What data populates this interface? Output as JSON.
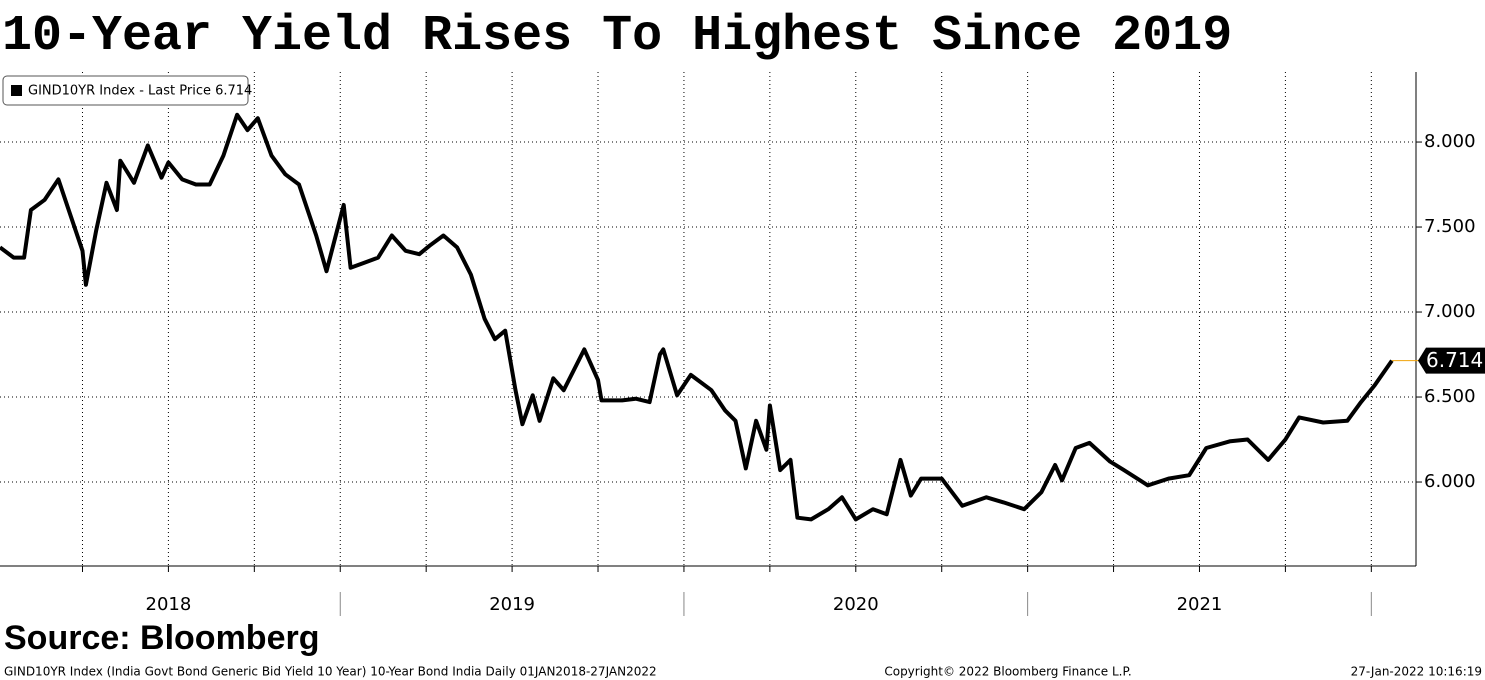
{
  "chart_data": {
    "type": "line",
    "title": "10-Year Yield Rises To Highest Since 2019",
    "source": "Source: Bloomberg",
    "footer": {
      "left": "GIND10YR Index (India Govt Bond Generic Bid Yield 10 Year) 10-Year Bond India  Daily 01JAN2018-27JAN2022",
      "center": "Copyright© 2022 Bloomberg Finance L.P.",
      "right": "27-Jan-2022 10:16:19"
    },
    "x": [
      2018.01,
      2018.05,
      2018.08,
      2018.1,
      2018.14,
      2018.18,
      2018.21,
      2018.25,
      2018.26,
      2018.29,
      2018.32,
      2018.35,
      2018.36,
      2018.4,
      2018.44,
      2018.48,
      2018.5,
      2018.54,
      2018.58,
      2018.62,
      2018.66,
      2018.7,
      2018.73,
      2018.76,
      2018.8,
      2018.84,
      2018.88,
      2018.93,
      2018.96,
      2019.01,
      2019.03,
      2019.07,
      2019.11,
      2019.15,
      2019.19,
      2019.23,
      2019.26,
      2019.3,
      2019.34,
      2019.38,
      2019.42,
      2019.45,
      2019.48,
      2019.51,
      2019.53,
      2019.56,
      2019.58,
      2019.62,
      2019.65,
      2019.71,
      2019.75,
      2019.76,
      2019.82,
      2019.86,
      2019.9,
      2019.93,
      2019.94,
      2019.98,
      2020.02,
      2020.08,
      2020.12,
      2020.15,
      2020.18,
      2020.21,
      2020.24,
      2020.25,
      2020.28,
      2020.31,
      2020.33,
      2020.37,
      2020.42,
      2020.46,
      2020.5,
      2020.55,
      2020.59,
      2020.63,
      2020.66,
      2020.69,
      2020.75,
      2020.81,
      2020.88,
      2020.93,
      2020.99,
      2021.04,
      2021.08,
      2021.1,
      2021.14,
      2021.18,
      2021.24,
      2021.28,
      2021.35,
      2021.41,
      2021.47,
      2021.52,
      2021.59,
      2021.64,
      2021.7,
      2021.75,
      2021.79,
      2021.86,
      2021.93,
      2021.97,
      2022.01,
      2022.06
    ],
    "series": [
      {
        "name": "GIND10YR Index - Last Price 6.714",
        "color": "#000000",
        "values": [
          7.38,
          7.32,
          7.32,
          7.6,
          7.66,
          7.78,
          7.6,
          7.36,
          7.16,
          7.48,
          7.76,
          7.6,
          7.89,
          7.76,
          7.98,
          7.79,
          7.88,
          7.78,
          7.75,
          7.75,
          7.92,
          8.16,
          8.07,
          8.14,
          7.92,
          7.81,
          7.75,
          7.45,
          7.24,
          7.63,
          7.26,
          7.29,
          7.32,
          7.45,
          7.36,
          7.34,
          7.39,
          7.45,
          7.38,
          7.22,
          6.96,
          6.84,
          6.89,
          6.54,
          6.34,
          6.51,
          6.36,
          6.61,
          6.54,
          6.78,
          6.6,
          6.48,
          6.48,
          6.49,
          6.47,
          6.75,
          6.78,
          6.51,
          6.63,
          6.54,
          6.42,
          6.36,
          6.08,
          6.36,
          6.19,
          6.45,
          6.07,
          6.13,
          5.79,
          5.78,
          5.84,
          5.91,
          5.78,
          5.84,
          5.81,
          6.13,
          5.92,
          6.02,
          6.02,
          5.86,
          5.91,
          5.88,
          5.84,
          5.94,
          6.1,
          6.01,
          6.2,
          6.23,
          6.12,
          6.07,
          5.98,
          6.02,
          6.04,
          6.2,
          6.24,
          6.25,
          6.13,
          6.25,
          6.38,
          6.35,
          6.36,
          6.47,
          6.57,
          6.714
        ]
      }
    ],
    "last_price_color": "#f0a30a",
    "xlim": [
      2018.01,
      2022.13
    ],
    "xticks": [
      {
        "value": 2018.5,
        "label": "2018"
      },
      {
        "value": 2019.5,
        "label": "2019"
      },
      {
        "value": 2020.5,
        "label": "2020"
      },
      {
        "value": 2021.5,
        "label": "2021"
      }
    ],
    "xgrid": [
      2018.25,
      2018.5,
      2018.75,
      2019,
      2019.25,
      2019.5,
      2019.75,
      2020,
      2020.25,
      2020.5,
      2020.75,
      2021,
      2021.25,
      2021.5,
      2021.75,
      2022
    ],
    "ylim": [
      5.506,
      8.412
    ],
    "yticks": [
      {
        "value": 6,
        "label": "6.000"
      },
      {
        "value": 6.5,
        "label": "6.500"
      },
      {
        "value": 7,
        "label": "7.000"
      },
      {
        "value": 7.5,
        "label": "7.500"
      },
      {
        "value": 8,
        "label": "8.000"
      }
    ],
    "grid": true,
    "legend": "top-left"
  }
}
